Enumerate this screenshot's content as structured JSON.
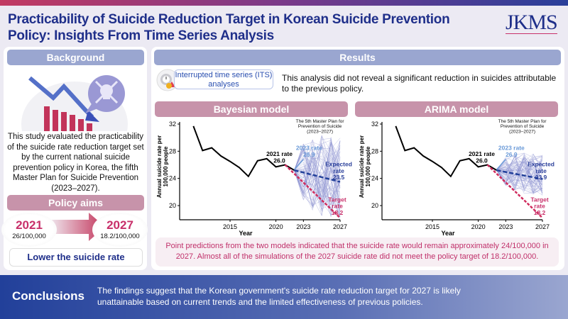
{
  "header": {
    "title": "Practicability of Suicide Reduction Target in Korean Suicide Prevention Policy: Insights From Time Series Analysis",
    "logo": "JKMS"
  },
  "colors": {
    "title": "#1f2f8a",
    "accent_pink": "#c8306a",
    "header_blue": "#9aa6d0",
    "header_pink": "#c793aa"
  },
  "background": {
    "heading": "Background",
    "text": "This study evaluated the practicability of the suicide rate reduction target set by the current national suicide prevention policy in Korea, the fifth Master Plan for Suicide Prevention (2023–2027).",
    "icon": "declining-chart-skull-icon"
  },
  "policy": {
    "heading": "Policy aims",
    "from_year": "2021",
    "from_value": "26/100,000",
    "to_year": "2027",
    "to_value": "18.2/100,000",
    "goal": "Lower the suicide rate"
  },
  "results": {
    "heading": "Results",
    "its_label": "Interrupted time series (ITS) analyses",
    "its_icon": "clock-gear-alert-icon",
    "its_text": "This analysis did not reveal a significant reduction in suicides attributable to the previous policy.",
    "summary": "Point predictions from the two models indicated that the suicide rate would remain approximately 24/100,000 in 2027. Almost all of the simulations of the 2027 suicide rate did not meet the policy target of 18.2/100,000."
  },
  "conclusions": {
    "heading": "Conclusions",
    "text": "The findings suggest that the Korean government's suicide rate reduction target for 2027 is likely unattainable based on current trends and the limited effectiveness of previous policies."
  },
  "chart_data": [
    {
      "type": "line",
      "title": "Bayesian model",
      "xlabel": "Year",
      "ylabel": "Annual suicide rate per 100,000 people",
      "ylim": [
        18,
        32
      ],
      "yticks": [
        20,
        24,
        28,
        32
      ],
      "xticks": [
        "2015",
        "2020",
        "2023",
        "2027"
      ],
      "grid": false,
      "plan_label": "The 5th Master Plan for Prevention of Suicide (2023–2027)",
      "observed": {
        "x": [
          2011,
          2012,
          2013,
          2014,
          2015,
          2016,
          2017,
          2018,
          2019,
          2020,
          2021,
          2022
        ],
        "y": [
          31.7,
          28.1,
          28.5,
          27.3,
          26.5,
          25.6,
          24.3,
          26.6,
          26.9,
          25.7,
          26.0,
          25.2
        ]
      },
      "expected": {
        "x": [
          2022,
          2027
        ],
        "y": [
          25.2,
          23.5
        ]
      },
      "target": {
        "x": [
          2021,
          2027
        ],
        "y": [
          26.0,
          18.2
        ]
      },
      "simulation_range_2027": [
        18,
        30
      ],
      "annotations": {
        "rate_2021": "2021 rate 26.0",
        "rate_2023": "2023 rate 26.9",
        "expected": "Expected rate 23.5",
        "target": "Target rate 18.2"
      }
    },
    {
      "type": "line",
      "title": "ARIMA model",
      "xlabel": "Year",
      "ylabel": "Annual suicide rate per 100,000 people",
      "ylim": [
        18,
        32
      ],
      "yticks": [
        20,
        24,
        28,
        32
      ],
      "xticks": [
        "2015",
        "2020",
        "2023",
        "2027"
      ],
      "grid": false,
      "plan_label": "The 5th Master Plan for Prevention of Suicide (2023–2027)",
      "observed": {
        "x": [
          2011,
          2012,
          2013,
          2014,
          2015,
          2016,
          2017,
          2018,
          2019,
          2020,
          2021,
          2022
        ],
        "y": [
          31.7,
          28.1,
          28.5,
          27.3,
          26.5,
          25.6,
          24.3,
          26.6,
          26.9,
          25.7,
          26.0,
          25.2
        ]
      },
      "expected": {
        "x": [
          2022,
          2027
        ],
        "y": [
          25.2,
          23.9
        ]
      },
      "target": {
        "x": [
          2021,
          2027
        ],
        "y": [
          26.0,
          18.2
        ]
      },
      "simulation_range_2027": [
        21.5,
        27.5
      ],
      "annotations": {
        "rate_2021": "2021 rate 26.0",
        "rate_2023": "2023 rate 26.9",
        "expected": "Expected rate 23.9",
        "target": "Target rate 18.2"
      }
    }
  ]
}
